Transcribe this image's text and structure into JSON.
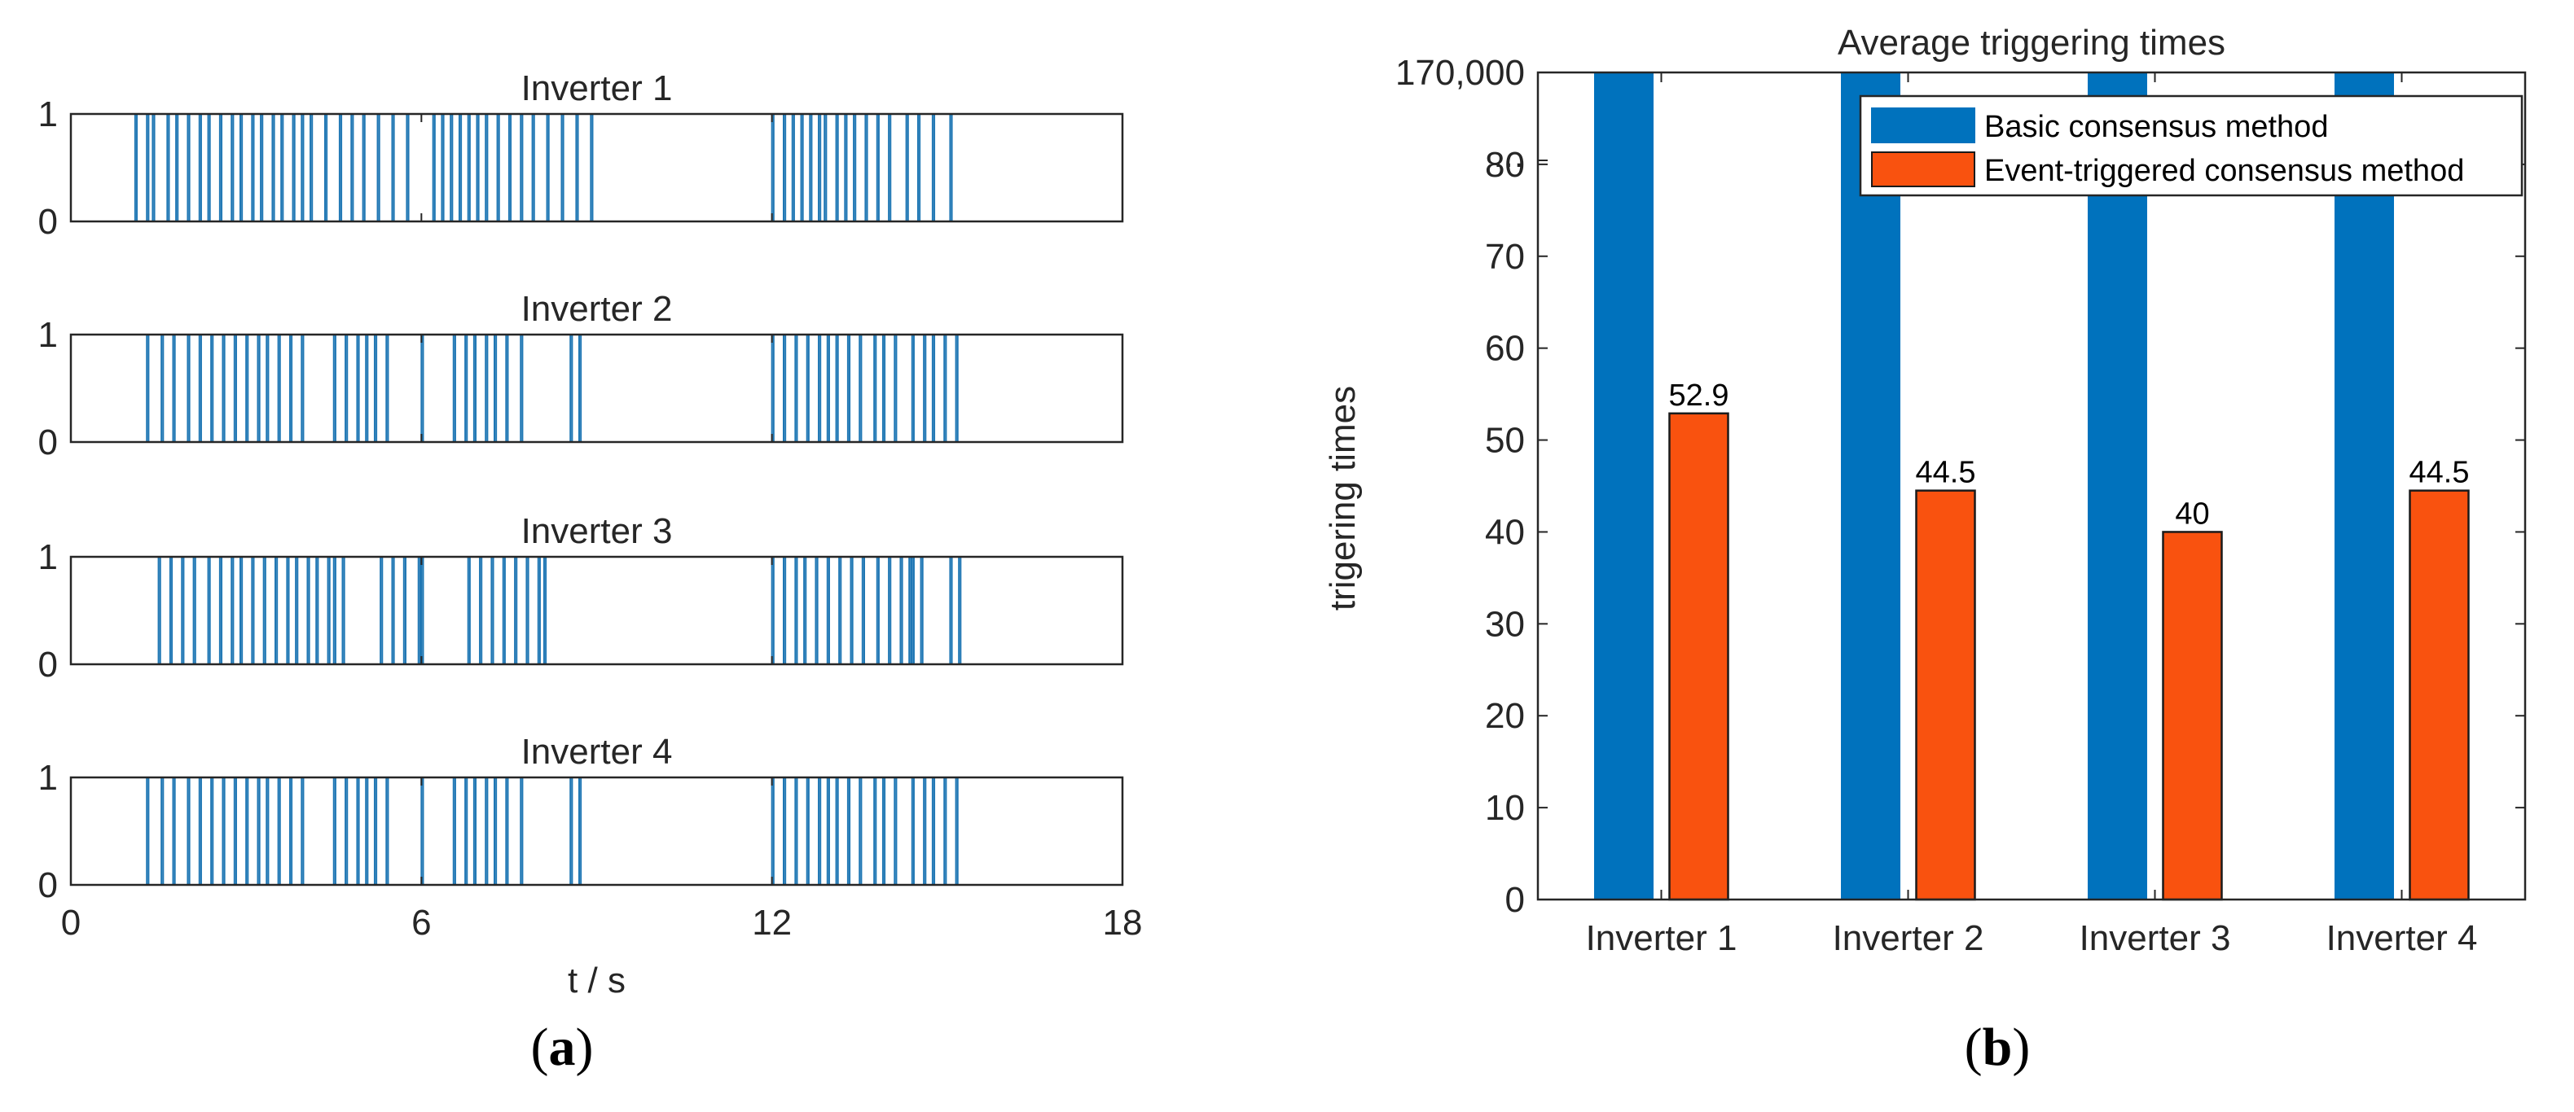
{
  "colors": {
    "signal": "#1f77b4",
    "basic": "#0072bd",
    "event": "#f9520f",
    "axis": "#262626",
    "text": "#262626"
  },
  "panels": {
    "a_label": "a",
    "b_label": "b"
  },
  "chart_data": [
    {
      "type": "line",
      "panel": "a",
      "xlabel": "t / s",
      "xlim": [
        0,
        18
      ],
      "xticks": [
        0,
        6,
        12,
        18
      ],
      "ylim": [
        0,
        1
      ],
      "yticks": [
        0,
        1
      ],
      "subplots": [
        {
          "title": "Inverter 1",
          "trigger_times_s": [
            1.1,
            1.3,
            1.4,
            1.65,
            1.8,
            2.0,
            2.2,
            2.35,
            2.55,
            2.75,
            2.9,
            3.1,
            3.25,
            3.45,
            3.6,
            3.8,
            3.95,
            4.1,
            4.35,
            4.6,
            4.8,
            5.0,
            5.25,
            5.5,
            5.75,
            6.2,
            6.35,
            6.5,
            6.65,
            6.8,
            6.95,
            7.1,
            7.3,
            7.5,
            7.7,
            7.9,
            8.15,
            8.4,
            8.65,
            8.9,
            12.0,
            12.2,
            12.35,
            12.5,
            12.65,
            12.8,
            12.9,
            13.1,
            13.25,
            13.4,
            13.6,
            13.8,
            14.0,
            14.3,
            14.5,
            14.75,
            15.05
          ]
        },
        {
          "title": "Inverter 2",
          "trigger_times_s": [
            1.3,
            1.55,
            1.75,
            2.0,
            2.2,
            2.4,
            2.6,
            2.8,
            3.0,
            3.2,
            3.35,
            3.55,
            3.75,
            3.95,
            4.5,
            4.7,
            4.9,
            5.05,
            5.2,
            5.4,
            6.0,
            6.55,
            6.75,
            6.9,
            7.1,
            7.25,
            7.45,
            7.7,
            8.55,
            8.7,
            12.0,
            12.2,
            12.4,
            12.6,
            12.8,
            12.95,
            13.1,
            13.3,
            13.5,
            13.75,
            13.9,
            14.1,
            14.4,
            14.6,
            14.75,
            14.95,
            15.15
          ]
        },
        {
          "title": "Inverter 3",
          "trigger_times_s": [
            1.5,
            1.7,
            1.9,
            2.1,
            2.35,
            2.55,
            2.75,
            2.9,
            3.1,
            3.3,
            3.5,
            3.7,
            3.85,
            4.05,
            4.2,
            4.4,
            4.5,
            4.65,
            5.3,
            5.5,
            5.7,
            5.95,
            6.0,
            6.8,
            7.0,
            7.2,
            7.4,
            7.6,
            7.8,
            8.0,
            8.1,
            12.0,
            12.2,
            12.4,
            12.55,
            12.75,
            12.95,
            13.15,
            13.35,
            13.55,
            13.8,
            14.0,
            14.2,
            14.35,
            14.4,
            14.55,
            15.05,
            15.2
          ]
        },
        {
          "title": "Inverter 4",
          "trigger_times_s": [
            1.3,
            1.55,
            1.75,
            2.0,
            2.2,
            2.4,
            2.6,
            2.8,
            3.0,
            3.2,
            3.35,
            3.55,
            3.75,
            3.95,
            4.5,
            4.7,
            4.9,
            5.05,
            5.2,
            5.4,
            6.0,
            6.55,
            6.75,
            6.9,
            7.1,
            7.25,
            7.45,
            7.7,
            8.55,
            8.7,
            12.0,
            12.2,
            12.4,
            12.6,
            12.8,
            12.95,
            13.1,
            13.3,
            13.5,
            13.75,
            13.9,
            14.1,
            14.4,
            14.6,
            14.75,
            14.95,
            15.15
          ]
        }
      ]
    },
    {
      "type": "bar",
      "panel": "b",
      "title": "Average triggering times",
      "xlabel": "",
      "ylabel": "trigering times",
      "ylim": [
        0,
        90
      ],
      "yticks": [
        0,
        10,
        20,
        30,
        40,
        50,
        60,
        70,
        80
      ],
      "break_tick_label": "…",
      "top_tick_label": "170,000",
      "categories": [
        "Inverter 1",
        "Inverter 2",
        "Inverter 3",
        "Inverter 4"
      ],
      "series": [
        {
          "name": "Basic consensus method",
          "values": [
            170000,
            170000,
            170000,
            170000
          ],
          "color_key": "basic"
        },
        {
          "name": "Event-triggered consensus method",
          "values": [
            52.9,
            44.5,
            40,
            44.5
          ],
          "color_key": "event"
        }
      ],
      "data_labels": [
        "52.9",
        "44.5",
        "40",
        "44.5"
      ],
      "legend_position": "top-right"
    }
  ]
}
